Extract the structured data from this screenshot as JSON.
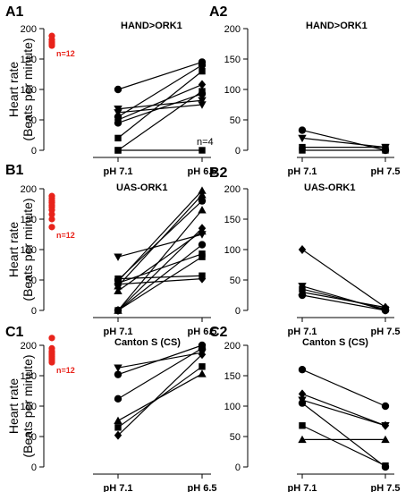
{
  "figure": {
    "ylabel_line1": "Heart rate",
    "ylabel_line2": "(Beats per minute)",
    "control_color": "#e8231b",
    "line_color": "#000000"
  },
  "chart_data": [
    {
      "id": "A1",
      "type": "line",
      "title": "HAND>ORK1",
      "categories": [
        "pH 7.1",
        "pH 6.5"
      ],
      "ylim": [
        0,
        200
      ],
      "yticks": [
        0,
        50,
        100,
        150,
        200
      ],
      "control": {
        "label": "n=12",
        "values": [
          188,
          182,
          178,
          175,
          172
        ]
      },
      "note": "n=4",
      "series": [
        {
          "marker": "circle",
          "values": [
            100,
            145
          ]
        },
        {
          "marker": "circle",
          "values": [
            55,
            140
          ]
        },
        {
          "marker": "circle",
          "values": [
            45,
            93
          ]
        },
        {
          "marker": "diamond",
          "values": [
            50,
            108
          ]
        },
        {
          "marker": "triangle-down",
          "values": [
            68,
            82
          ]
        },
        {
          "marker": "triangle-down",
          "values": [
            62,
            75
          ]
        },
        {
          "marker": "square",
          "values": [
            20,
            130
          ]
        },
        {
          "marker": "square",
          "values": [
            0,
            97
          ]
        },
        {
          "marker": "square",
          "values": [
            0,
            0
          ]
        }
      ]
    },
    {
      "id": "A2",
      "type": "line",
      "title": "HAND>ORK1",
      "categories": [
        "pH 7.1",
        "pH 7.5"
      ],
      "ylim": [
        0,
        200
      ],
      "yticks": [
        0,
        50,
        100,
        150,
        200
      ],
      "series": [
        {
          "marker": "circle",
          "values": [
            33,
            0
          ]
        },
        {
          "marker": "triangle-down",
          "values": [
            20,
            5
          ]
        },
        {
          "marker": "square",
          "values": [
            5,
            5
          ]
        },
        {
          "marker": "square",
          "values": [
            0,
            0
          ]
        }
      ]
    },
    {
      "id": "B1",
      "type": "line",
      "title": "UAS-ORK1",
      "categories": [
        "pH 7.1",
        "pH 6.5"
      ],
      "ylim": [
        0,
        200
      ],
      "yticks": [
        0,
        50,
        100,
        150,
        200
      ],
      "control": {
        "label": "n=12",
        "values": [
          188,
          184,
          180,
          177,
          173,
          170,
          165,
          158,
          150,
          137
        ]
      },
      "series": [
        {
          "marker": "triangle-down",
          "values": [
            88,
            125
          ]
        },
        {
          "marker": "square",
          "values": [
            52,
            57
          ]
        },
        {
          "marker": "circle",
          "values": [
            50,
            180
          ]
        },
        {
          "marker": "triangle-up",
          "values": [
            48,
            197
          ]
        },
        {
          "marker": "triangle-up",
          "values": [
            40,
            190
          ]
        },
        {
          "marker": "square",
          "values": [
            45,
            93
          ]
        },
        {
          "marker": "diamond",
          "values": [
            43,
            52
          ]
        },
        {
          "marker": "triangle-up",
          "values": [
            32,
            130
          ]
        },
        {
          "marker": "circle",
          "values": [
            0,
            108
          ]
        },
        {
          "marker": "square",
          "values": [
            0,
            88
          ]
        },
        {
          "marker": "diamond",
          "values": [
            0,
            135
          ]
        },
        {
          "marker": "triangle-up",
          "values": [
            0,
            165
          ]
        }
      ]
    },
    {
      "id": "B2",
      "type": "line",
      "title": "UAS-ORK1",
      "categories": [
        "pH 7.1",
        "pH 7.5"
      ],
      "ylim": [
        0,
        200
      ],
      "yticks": [
        0,
        50,
        100,
        150,
        200
      ],
      "series": [
        {
          "marker": "diamond",
          "values": [
            100,
            5
          ]
        },
        {
          "marker": "triangle-down",
          "values": [
            40,
            0
          ]
        },
        {
          "marker": "square",
          "values": [
            35,
            2
          ]
        },
        {
          "marker": "triangle-up",
          "values": [
            30,
            5
          ]
        },
        {
          "marker": "circle",
          "values": [
            25,
            0
          ]
        }
      ]
    },
    {
      "id": "C1",
      "type": "line",
      "title": "Canton S (CS)",
      "categories": [
        "pH 7.1",
        "pH 6.5"
      ],
      "ylim": [
        0,
        200
      ],
      "yticks": [
        0,
        50,
        100,
        150,
        200
      ],
      "control": {
        "label": "n=12",
        "values": [
          212,
          195,
          190,
          187,
          184,
          181,
          178,
          175,
          172
        ]
      },
      "series": [
        {
          "marker": "triangle-down",
          "values": [
            163,
            188
          ]
        },
        {
          "marker": "circle",
          "values": [
            152,
            200
          ]
        },
        {
          "marker": "circle",
          "values": [
            112,
            195
          ]
        },
        {
          "marker": "triangle-up",
          "values": [
            76,
            153
          ]
        },
        {
          "marker": "square",
          "values": [
            65,
            165
          ]
        },
        {
          "marker": "diamond",
          "values": [
            52,
            185
          ]
        }
      ]
    },
    {
      "id": "C2",
      "type": "line",
      "title": "Canton S (CS)",
      "categories": [
        "pH 7.1",
        "pH 7.5"
      ],
      "ylim": [
        0,
        200
      ],
      "yticks": [
        0,
        50,
        100,
        150,
        200
      ],
      "series": [
        {
          "marker": "circle",
          "values": [
            160,
            100
          ]
        },
        {
          "marker": "diamond",
          "values": [
            120,
            68
          ]
        },
        {
          "marker": "triangle-down",
          "values": [
            110,
            68
          ]
        },
        {
          "marker": "circle",
          "values": [
            105,
            0
          ]
        },
        {
          "marker": "square",
          "values": [
            68,
            2
          ]
        },
        {
          "marker": "triangle-up",
          "values": [
            45,
            45
          ]
        }
      ]
    }
  ]
}
